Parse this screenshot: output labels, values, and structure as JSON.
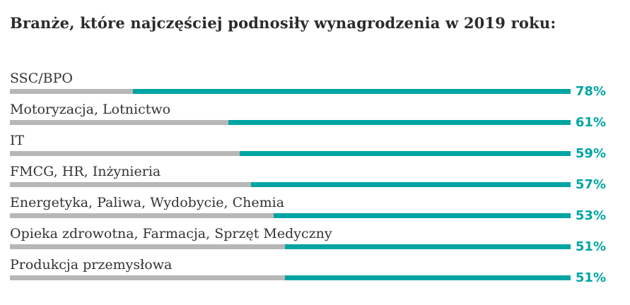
{
  "chart_data": {
    "type": "bar",
    "orientation": "horizontal",
    "title": "Branże, które najczęściej podnosiły wynagrodzenia w 2019 roku:",
    "categories": [
      "SSC/BPO",
      "Motoryzacja, Lotnictwo",
      "IT",
      "FMCG, HR, Inżynieria",
      "Energetyka, Paliwa, Wydobycie, Chemia",
      "Opieka zdrowotna, Farmacja, Sprzęt Medyczny",
      "Produkcja przemysłowa"
    ],
    "values": [
      78,
      61,
      59,
      57,
      53,
      51,
      51
    ],
    "value_suffix": "%",
    "xlim": [
      0,
      100
    ],
    "grid": false,
    "legend": "none",
    "bar_style": "right-aligned teal fill with gray remainder on left",
    "colors": {
      "fill": "#00A5A3",
      "remainder": "#B7B7B7",
      "title": "#2B2B2B",
      "label": "#333333",
      "value": "#00A5A3",
      "background": "#FFFFFF"
    }
  }
}
